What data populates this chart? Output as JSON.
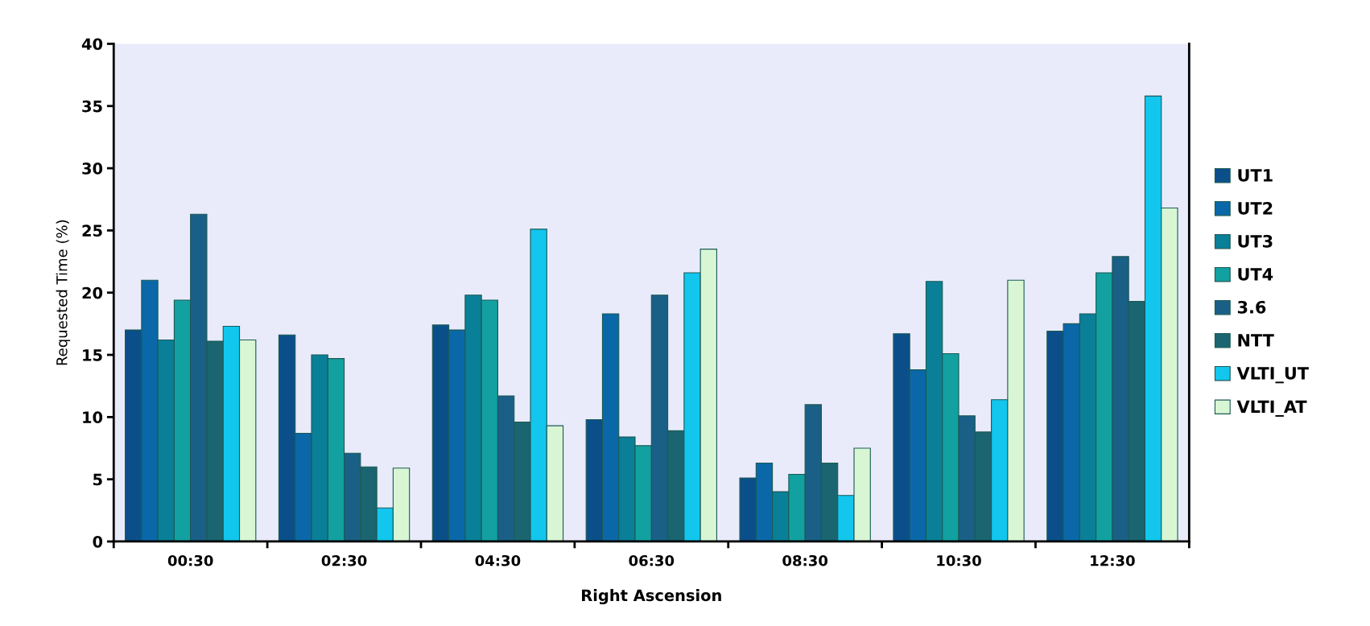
{
  "chart_data": {
    "type": "bar",
    "xlabel": "Right Ascension",
    "ylabel": "Requested Time (%)",
    "categories": [
      "00:30",
      "02:30",
      "04:30",
      "06:30",
      "08:30",
      "10:30",
      "12:30"
    ],
    "series": [
      {
        "name": "UT1",
        "color": "#0b4f8a",
        "values": [
          17.0,
          16.6,
          17.4,
          9.8,
          5.1,
          16.7,
          16.9
        ]
      },
      {
        "name": "UT2",
        "color": "#0a68a8",
        "values": [
          21.0,
          8.7,
          17.0,
          18.3,
          6.3,
          13.8,
          17.5
        ]
      },
      {
        "name": "UT3",
        "color": "#0a7f98",
        "values": [
          16.2,
          15.0,
          19.8,
          8.4,
          4.0,
          20.9,
          18.3
        ]
      },
      {
        "name": "UT4",
        "color": "#12a0a0",
        "values": [
          19.4,
          14.7,
          19.4,
          7.7,
          5.4,
          15.1,
          21.6
        ]
      },
      {
        "name": "3.6",
        "color": "#1a5f86",
        "values": [
          26.3,
          7.1,
          11.7,
          19.8,
          11.0,
          10.1,
          22.9
        ]
      },
      {
        "name": "NTT",
        "color": "#1a6570",
        "values": [
          16.1,
          6.0,
          9.6,
          8.9,
          6.3,
          8.8,
          19.3
        ]
      },
      {
        "name": "VLTI_UT",
        "color": "#12c6ee",
        "values": [
          17.3,
          2.7,
          25.1,
          21.6,
          3.7,
          11.4,
          35.8
        ]
      },
      {
        "name": "VLTI_AT",
        "color": "#d8f6d4",
        "values": [
          16.2,
          5.9,
          9.3,
          23.5,
          7.5,
          21.0,
          26.8
        ]
      }
    ],
    "ylim": [
      0,
      40
    ],
    "yticks": [
      0,
      5,
      10,
      15,
      20,
      25,
      30,
      35,
      40
    ],
    "grid": false,
    "legend": "right"
  }
}
